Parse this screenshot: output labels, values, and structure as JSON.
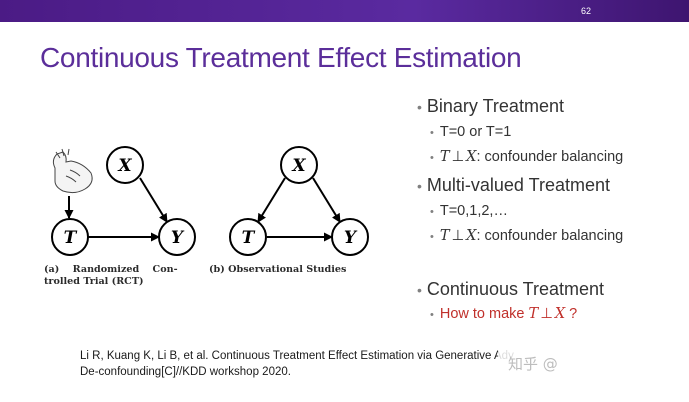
{
  "slide": {
    "number": "62",
    "title": "Continuous Treatment Effect Estimation"
  },
  "diagrams": {
    "left": {
      "nodes": {
        "x": "X",
        "t": "T",
        "y": "Y"
      },
      "caption_line1": "(a)    Randomized    Con-",
      "caption_line2": "trolled Trial (RCT)"
    },
    "right": {
      "nodes": {
        "x": "X",
        "t": "T",
        "y": "Y"
      },
      "caption_line1": "(b) Observational Studies"
    }
  },
  "bullets": {
    "binary": {
      "label": "Binary Treatment",
      "sub1": "T=0 or T=1",
      "sub2_t": "T",
      "sub2_perp": "⊥",
      "sub2_x": "X",
      "sub2_rest": ": confounder balancing"
    },
    "multi": {
      "label": "Multi-valued Treatment",
      "sub1": "T=0,1,2,…",
      "sub2_t": "T",
      "sub2_perp": "⊥",
      "sub2_x": "X",
      "sub2_rest": ": confounder balancing"
    },
    "continuous": {
      "label": "Continuous Treatment",
      "sub_prefix": "How to make ",
      "sub_t": "T",
      "sub_perp": "⊥",
      "sub_x": "X",
      "sub_suffix": " ?"
    }
  },
  "reference": {
    "line1": "Li R, Kuang K, Li B, et al. Continuous Treatment Effect Estimation via Generative Adv",
    "line2": "De-confounding[C]//KDD workshop 2020."
  },
  "watermark": "知乎 @",
  "colors": {
    "topbar": "#4b1b85",
    "title": "#5b2e9a",
    "question": "#c0302b"
  }
}
